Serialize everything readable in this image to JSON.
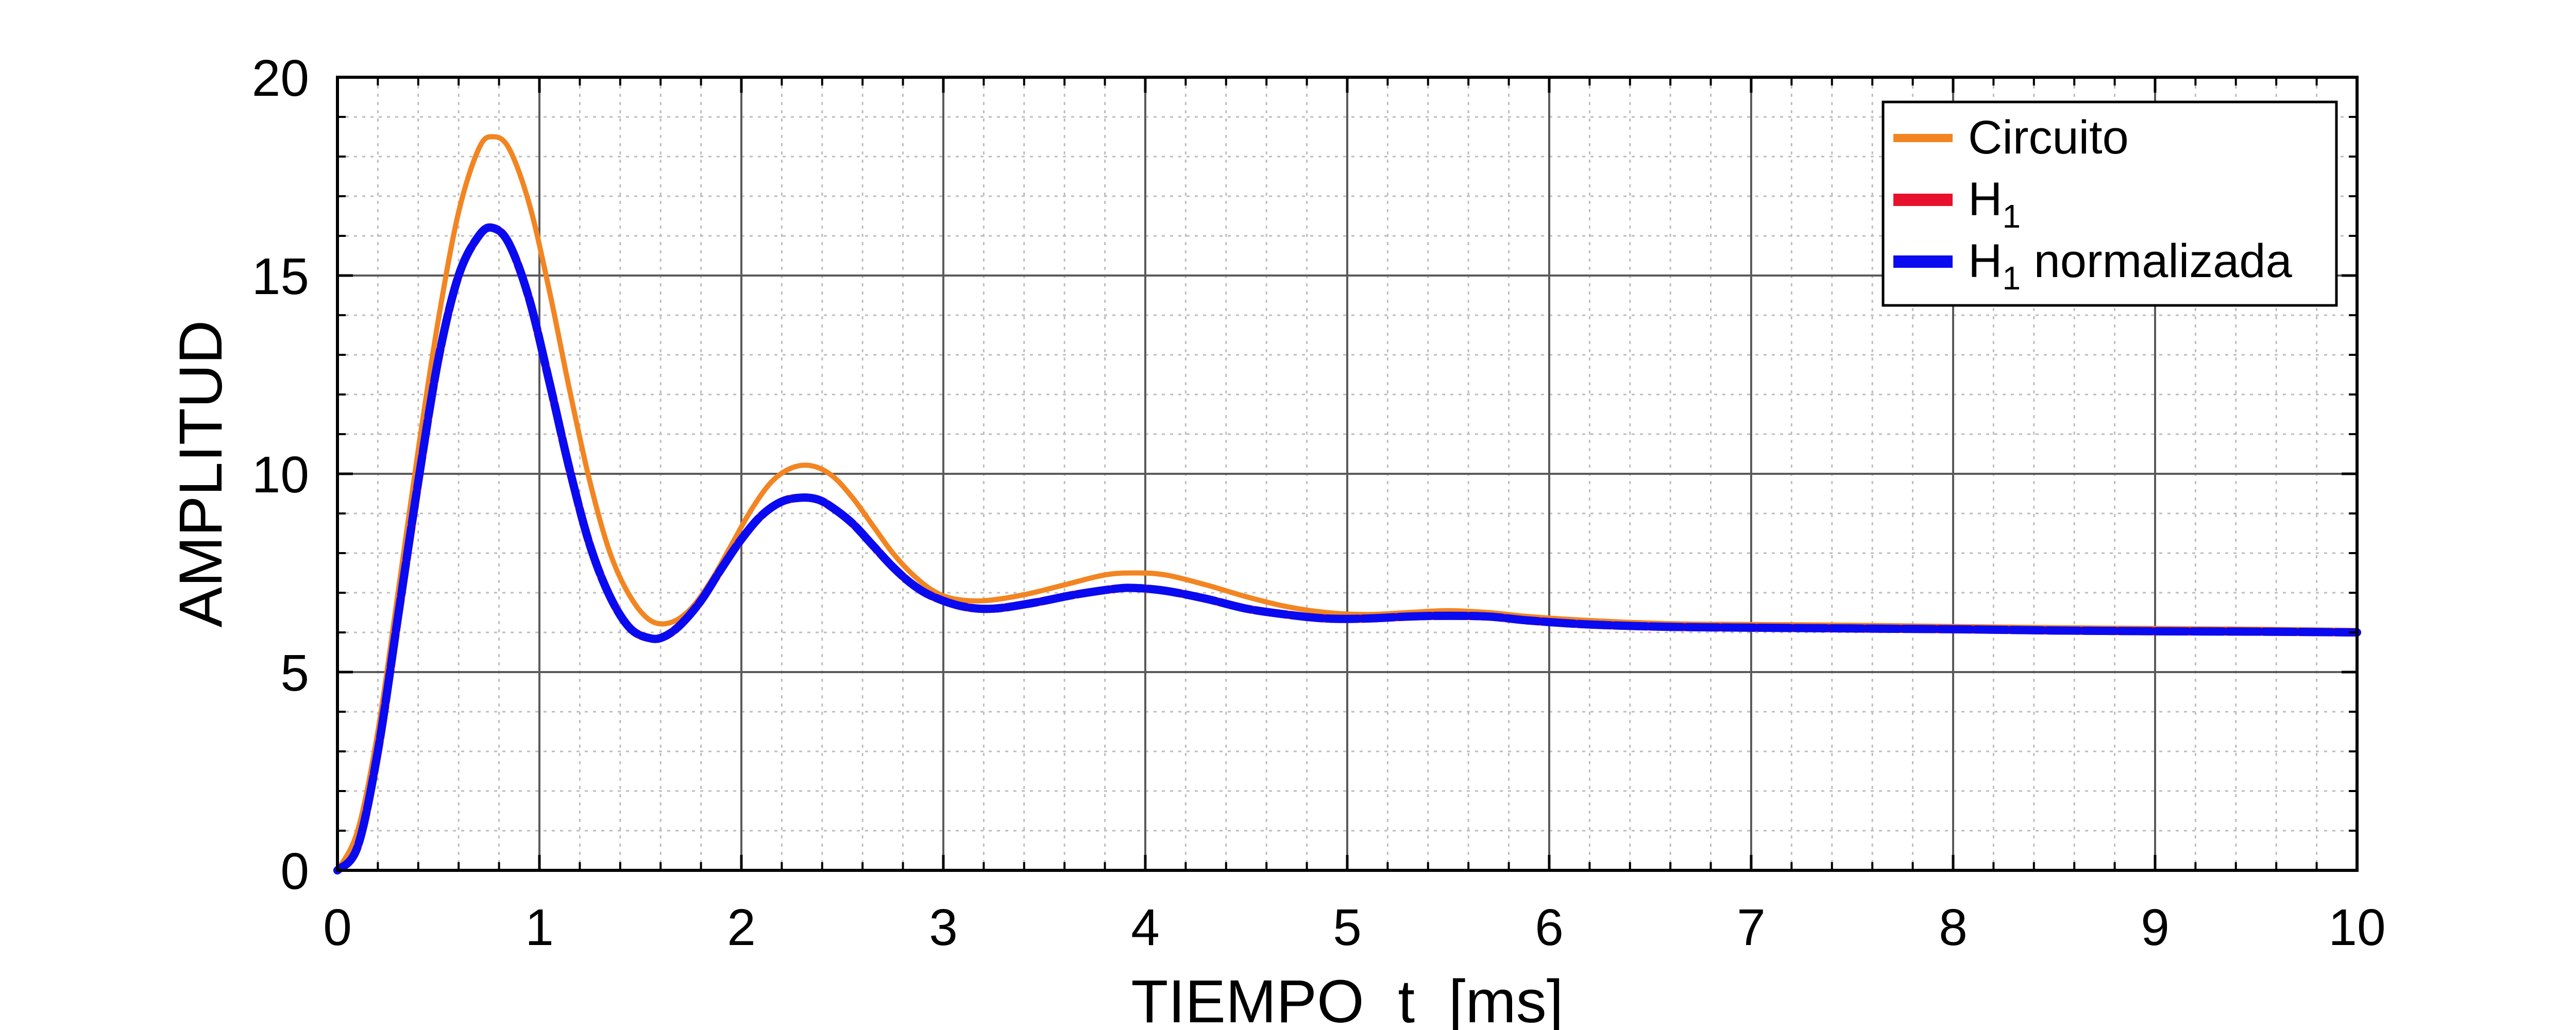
{
  "chart_data": {
    "type": "line",
    "xlabel": "TIEMPO  t  [ms]",
    "ylabel": "AMPLITUD",
    "xlim": [
      0,
      10
    ],
    "ylim": [
      0,
      20
    ],
    "xticks": [
      0,
      1,
      2,
      3,
      4,
      5,
      6,
      7,
      8,
      9,
      10
    ],
    "yticks": [
      0,
      5,
      10,
      15,
      20
    ],
    "x_tick_labels": [
      "0",
      "1",
      "2",
      "3",
      "4",
      "5",
      "6",
      "7",
      "8",
      "9",
      "10"
    ],
    "y_tick_labels": [
      "0",
      "5",
      "10",
      "15",
      "20"
    ],
    "grid": true,
    "minor_grid": true,
    "legend_position": "top-right",
    "series": [
      {
        "name": "Circuito",
        "color": "#F28522",
        "x": [
          0,
          0.1,
          0.2,
          0.3,
          0.4,
          0.5,
          0.6,
          0.7,
          0.77,
          0.85,
          0.95,
          1.05,
          1.15,
          1.25,
          1.35,
          1.45,
          1.55,
          1.65,
          1.75,
          1.85,
          1.95,
          2.05,
          2.15,
          2.25,
          2.35,
          2.45,
          2.55,
          2.65,
          2.75,
          2.85,
          2.95,
          3.05,
          3.2,
          3.4,
          3.6,
          3.8,
          3.95,
          4.1,
          4.3,
          4.5,
          4.7,
          4.9,
          5.1,
          5.3,
          5.5,
          5.7,
          5.9,
          6.2,
          6.6,
          7.0,
          7.5,
          8.0,
          8.5,
          9.0,
          9.5,
          10.0
        ],
        "y": [
          0,
          1.0,
          3.5,
          7.0,
          10.6,
          13.9,
          16.6,
          18.2,
          18.5,
          18.2,
          16.8,
          14.6,
          12.1,
          9.8,
          8.0,
          6.9,
          6.3,
          6.25,
          6.6,
          7.3,
          8.2,
          9.1,
          9.8,
          10.15,
          10.2,
          9.95,
          9.4,
          8.7,
          8.0,
          7.45,
          7.05,
          6.85,
          6.8,
          6.95,
          7.2,
          7.45,
          7.5,
          7.45,
          7.2,
          6.9,
          6.65,
          6.5,
          6.45,
          6.5,
          6.55,
          6.5,
          6.4,
          6.3,
          6.22,
          6.2,
          6.18,
          6.15,
          6.12,
          6.1,
          6.08,
          6.05
        ]
      },
      {
        "name": "H1",
        "color": "#E8112D",
        "x": [
          0,
          0.1,
          0.2,
          0.3,
          0.4,
          0.5,
          0.6,
          0.7,
          0.77,
          0.85,
          0.95,
          1.05,
          1.15,
          1.25,
          1.35,
          1.45,
          1.55,
          1.62,
          1.7,
          1.8,
          1.9,
          2.0,
          2.1,
          2.2,
          2.3,
          2.38,
          2.45,
          2.55,
          2.65,
          2.75,
          2.85,
          2.95,
          3.1,
          3.25,
          3.45,
          3.65,
          3.85,
          3.95,
          4.1,
          4.3,
          4.5,
          4.7,
          4.9,
          5.1,
          5.3,
          5.5,
          5.7,
          5.9,
          6.2,
          6.6,
          7.0,
          7.5,
          8.0,
          8.5,
          9.0,
          9.5,
          10.0
        ],
        "y": [
          0,
          0.6,
          3.0,
          6.4,
          9.8,
          12.9,
          15.0,
          16.0,
          16.2,
          15.8,
          14.4,
          12.3,
          10.1,
          8.2,
          6.9,
          6.1,
          5.85,
          5.9,
          6.2,
          6.8,
          7.6,
          8.35,
          8.95,
          9.3,
          9.4,
          9.35,
          9.15,
          8.75,
          8.2,
          7.65,
          7.2,
          6.9,
          6.65,
          6.6,
          6.75,
          6.95,
          7.1,
          7.12,
          7.05,
          6.85,
          6.6,
          6.45,
          6.35,
          6.35,
          6.4,
          6.42,
          6.4,
          6.3,
          6.2,
          6.14,
          6.12,
          6.1,
          6.08,
          6.05,
          6.03,
          6.02,
          6.0
        ]
      },
      {
        "name": "H1 normalizada",
        "color": "#0A0AF0",
        "x": [
          0,
          0.1,
          0.2,
          0.3,
          0.4,
          0.5,
          0.6,
          0.7,
          0.77,
          0.85,
          0.95,
          1.05,
          1.15,
          1.25,
          1.35,
          1.45,
          1.55,
          1.62,
          1.7,
          1.8,
          1.9,
          2.0,
          2.1,
          2.2,
          2.3,
          2.38,
          2.45,
          2.55,
          2.65,
          2.75,
          2.85,
          2.95,
          3.1,
          3.25,
          3.45,
          3.65,
          3.85,
          3.95,
          4.1,
          4.3,
          4.5,
          4.7,
          4.9,
          5.1,
          5.3,
          5.5,
          5.7,
          5.9,
          6.2,
          6.6,
          7.0,
          7.5,
          8.0,
          8.5,
          9.0,
          9.5,
          10.0
        ],
        "y": [
          0,
          0.6,
          3.0,
          6.4,
          9.8,
          12.9,
          15.0,
          16.0,
          16.2,
          15.8,
          14.4,
          12.3,
          10.1,
          8.2,
          6.9,
          6.1,
          5.85,
          5.9,
          6.2,
          6.8,
          7.6,
          8.35,
          8.95,
          9.3,
          9.4,
          9.35,
          9.15,
          8.75,
          8.2,
          7.65,
          7.2,
          6.9,
          6.65,
          6.6,
          6.75,
          6.95,
          7.1,
          7.12,
          7.05,
          6.85,
          6.6,
          6.45,
          6.35,
          6.35,
          6.4,
          6.42,
          6.4,
          6.3,
          6.2,
          6.14,
          6.12,
          6.1,
          6.08,
          6.05,
          6.03,
          6.02,
          6.0
        ]
      }
    ]
  },
  "legend": {
    "items": [
      {
        "main": "Circuito",
        "sub": "",
        "tail": ""
      },
      {
        "main": "H",
        "sub": "1",
        "tail": ""
      },
      {
        "main": "H",
        "sub": "1",
        "tail": " normalizada"
      }
    ]
  }
}
